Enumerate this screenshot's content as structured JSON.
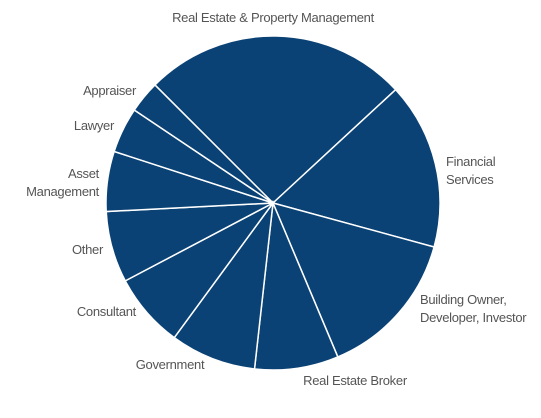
{
  "chart_data": {
    "type": "pie",
    "categories": [
      "Real Estate & Property Management",
      "Financial Services",
      "Building Owner, Developer, Investor",
      "Real Estate Broker",
      "Government",
      "Consultant",
      "Other",
      "Asset Management",
      "Lawyer",
      "Appraiser"
    ],
    "values": [
      25.6,
      16.1,
      14.4,
      8.1,
      8.3,
      7.2,
      6.9,
      5.8,
      4.4,
      3.1
    ],
    "color": "#0b4275"
  }
}
